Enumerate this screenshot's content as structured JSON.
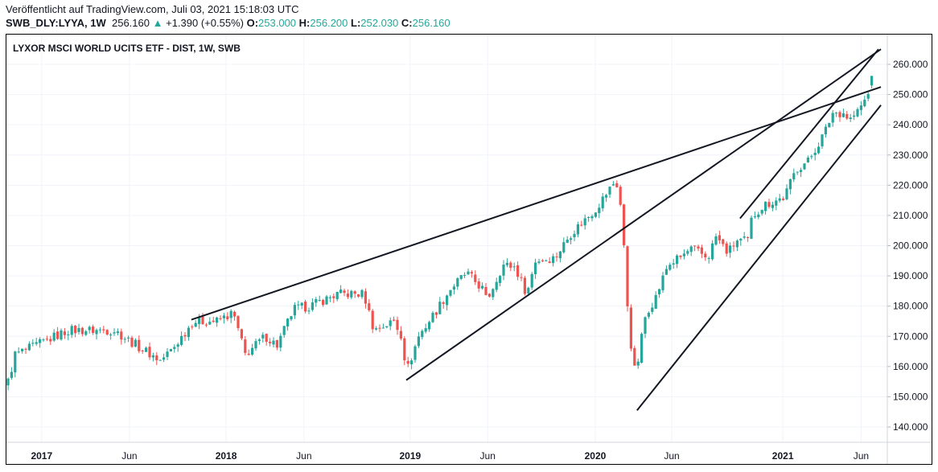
{
  "header": {
    "published": "Veröffentlicht auf TradingView.com, Juli 03, 2021 15:18:03 UTC",
    "symbol": "SWB_DLY:LYYA, 1W",
    "last": "256.160",
    "change": "+1.390 (+0.55%)",
    "o_label": "O:",
    "o": "253.000",
    "h_label": "H:",
    "h": "256.200",
    "l_label": "L:",
    "l": "252.030",
    "c_label": "C:",
    "c": "256.160"
  },
  "colors": {
    "up": "#26a69a",
    "down": "#ef5350",
    "grid": "#f0f3fa",
    "line": "#131722"
  },
  "chart_data": {
    "type": "candlestick",
    "title": "LYXOR MSCI WORLD UCITS ETF - DIST, 1W, SWB",
    "ylim": [
      135,
      265
    ],
    "yticks": [
      "140.000",
      "150.000",
      "160.000",
      "170.000",
      "180.000",
      "190.000",
      "200.000",
      "210.000",
      "220.000",
      "230.000",
      "240.000",
      "250.000",
      "260.000"
    ],
    "ytick_values": [
      140,
      150,
      160,
      170,
      180,
      190,
      200,
      210,
      220,
      230,
      240,
      250,
      260
    ],
    "xticks": [
      {
        "label": "2017",
        "week": 9.5
      },
      {
        "label": "Jun",
        "week": 34.3
      },
      {
        "label": "2018",
        "week": 61.6
      },
      {
        "label": "Jun",
        "week": 83.6
      },
      {
        "label": "2019",
        "week": 113.6
      },
      {
        "label": "Jun",
        "week": 135.5
      },
      {
        "label": "2020",
        "week": 165.9
      },
      {
        "label": "Jun",
        "week": 187.5
      },
      {
        "label": "2021",
        "week": 218.9
      },
      {
        "label": "Jun",
        "week": 241
      }
    ],
    "weeks_total": 245,
    "close_anchors": [
      [
        0,
        155
      ],
      [
        2,
        164
      ],
      [
        7,
        166.5
      ],
      [
        17,
        172
      ],
      [
        30,
        172
      ],
      [
        35,
        168
      ],
      [
        43,
        162
      ],
      [
        46.6,
        166
      ],
      [
        52.3,
        175
      ],
      [
        59,
        175
      ],
      [
        63.6,
        177.7
      ],
      [
        67,
        164
      ],
      [
        72.7,
        170
      ],
      [
        76,
        167
      ],
      [
        80.7,
        179
      ],
      [
        85.2,
        180
      ],
      [
        93.2,
        184
      ],
      [
        100,
        184
      ],
      [
        101,
        182
      ],
      [
        103.4,
        172
      ],
      [
        109,
        175
      ],
      [
        111.4,
        169.7
      ],
      [
        112.5,
        158
      ],
      [
        116,
        170
      ],
      [
        120.5,
        177.7
      ],
      [
        125,
        185.7
      ],
      [
        129.5,
        191
      ],
      [
        134,
        185.7
      ],
      [
        135.2,
        181.7
      ],
      [
        139.8,
        193.6
      ],
      [
        143.2,
        193
      ],
      [
        146.6,
        184
      ],
      [
        148.9,
        195
      ],
      [
        154.5,
        196
      ],
      [
        159,
        204
      ],
      [
        165.9,
        212
      ],
      [
        171.6,
        221.5
      ],
      [
        172.7,
        217.5
      ],
      [
        173.9,
        201.6
      ],
      [
        174.5,
        188
      ],
      [
        175.7,
        169.7
      ],
      [
        177.3,
        156.5
      ],
      [
        178.6,
        167
      ],
      [
        180.2,
        177.7
      ],
      [
        183,
        183
      ],
      [
        186.4,
        193.6
      ],
      [
        189.8,
        196
      ],
      [
        193.2,
        199
      ],
      [
        197.7,
        196
      ],
      [
        200,
        203
      ],
      [
        203.4,
        197.6
      ],
      [
        205.7,
        201.6
      ],
      [
        209,
        201.6
      ],
      [
        210.2,
        209.6
      ],
      [
        213.6,
        213.5
      ],
      [
        219.3,
        216
      ],
      [
        222.7,
        225.5
      ],
      [
        226.1,
        228
      ],
      [
        230.7,
        237.4
      ],
      [
        233,
        244
      ],
      [
        236.4,
        244
      ],
      [
        237.5,
        241.4
      ],
      [
        239.8,
        244
      ],
      [
        242,
        248
      ],
      [
        243,
        250
      ],
      [
        244,
        256.16
      ]
    ],
    "last_candle": {
      "open": 253.0,
      "high": 256.2,
      "low": 252.03,
      "close": 256.16
    },
    "trendlines": [
      {
        "from": [
          51.8,
          175.5
        ],
        "to": [
          246.6,
          252.5
        ]
      },
      {
        "from": [
          112.5,
          155.5
        ],
        "to": [
          246.6,
          265
        ]
      },
      {
        "from": [
          177.7,
          145.5
        ],
        "to": [
          246.6,
          246.5
        ]
      },
      {
        "from": [
          206.8,
          209
        ],
        "to": [
          245.9,
          265
        ]
      }
    ]
  }
}
